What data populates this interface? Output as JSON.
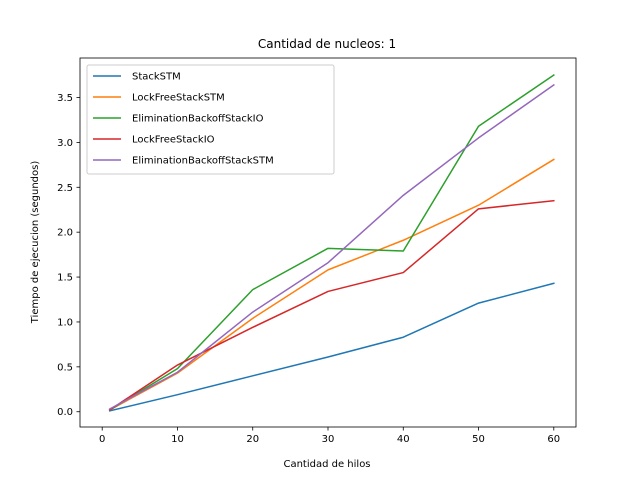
{
  "chart_data": {
    "type": "line",
    "title": "Cantidad de nucleos: 1",
    "xlabel": "Cantidad de hilos",
    "ylabel": "Tiempo de ejecucion (segundos)",
    "x": [
      1,
      10,
      20,
      30,
      40,
      50,
      60
    ],
    "xlim": [
      -2.95,
      62.95
    ],
    "ylim": [
      -0.17,
      3.94
    ],
    "xticks": [
      0,
      10,
      20,
      30,
      40,
      50,
      60
    ],
    "xtick_labels": [
      "0",
      "10",
      "20",
      "30",
      "40",
      "50",
      "60"
    ],
    "yticks": [
      0.0,
      0.5,
      1.0,
      1.5,
      2.0,
      2.5,
      3.0,
      3.5
    ],
    "ytick_labels": [
      "0.0",
      "0.5",
      "1.0",
      "1.5",
      "2.0",
      "2.5",
      "3.0",
      "3.5"
    ],
    "grid": false,
    "legend_position": "top-left",
    "series": [
      {
        "name": "StackSTM",
        "color": "#1f77b4",
        "values": [
          0.01,
          0.19,
          0.4,
          0.61,
          0.83,
          1.21,
          1.43
        ]
      },
      {
        "name": "LockFreeStackSTM",
        "color": "#ff7f0e",
        "values": [
          0.02,
          0.43,
          1.04,
          1.58,
          1.91,
          2.3,
          2.81
        ]
      },
      {
        "name": "EliminationBackoffStackIO",
        "color": "#2ca02c",
        "values": [
          0.02,
          0.48,
          1.36,
          1.82,
          1.79,
          3.18,
          3.75
        ]
      },
      {
        "name": "LockFreeStackIO",
        "color": "#d62728",
        "values": [
          0.02,
          0.52,
          0.94,
          1.34,
          1.55,
          2.26,
          2.35
        ]
      },
      {
        "name": "EliminationBackoffStackSTM",
        "color": "#9467bd",
        "values": [
          0.03,
          0.44,
          1.11,
          1.66,
          2.41,
          3.05,
          3.64
        ]
      }
    ]
  }
}
